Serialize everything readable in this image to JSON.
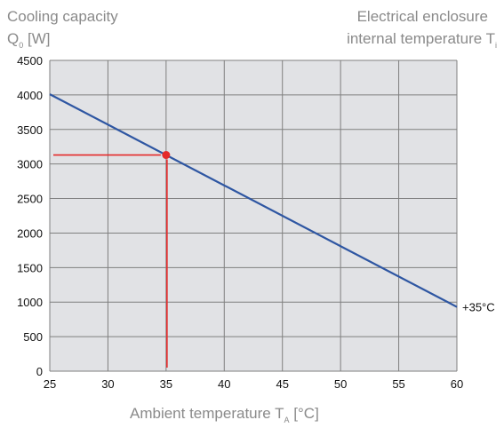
{
  "labels": {
    "y_title_line1": "Cooling capacity",
    "y_title_q": "Q",
    "y_title_q_sub": "0",
    "y_title_unit": " [W]",
    "right_title_line1": "Electrical enclosure",
    "right_title_line2": "internal temperature T",
    "right_title_sub": "i",
    "x_title": "Ambient temperature T",
    "x_title_sub": "A",
    "x_title_unit": " [°C]"
  },
  "colors": {
    "plot_background": "#e1e2e5",
    "grid": "#7f7f7f",
    "series_line": "#2e56a2",
    "marker": "#e52a2a"
  },
  "chart_data": {
    "type": "line",
    "xlim": [
      25,
      60
    ],
    "ylim": [
      0,
      4500
    ],
    "x_ticks": [
      25,
      30,
      35,
      40,
      45,
      50,
      55,
      60
    ],
    "y_ticks": [
      0,
      500,
      1000,
      1500,
      2000,
      2500,
      3000,
      3500,
      4000,
      4500
    ],
    "grid": true,
    "series": [
      {
        "name": "+35°C",
        "x": [
          25,
          60
        ],
        "y": [
          4010,
          930
        ]
      }
    ],
    "reading": {
      "x": 35,
      "y": 3130
    }
  }
}
